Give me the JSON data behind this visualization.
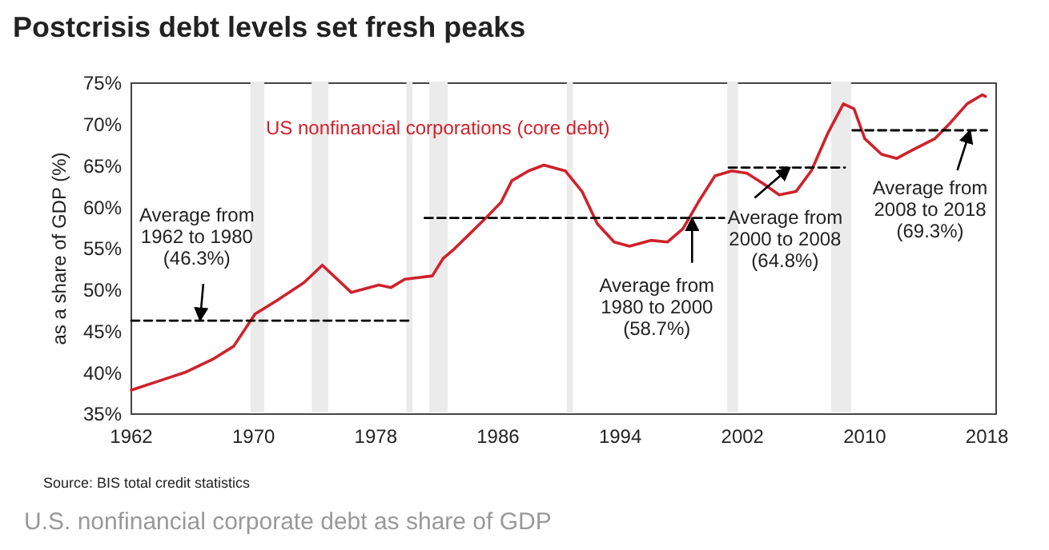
{
  "chart_data": {
    "type": "line",
    "title": "Postcrisis debt levels set fresh peaks",
    "ylabel": "as a share of GDP (%)",
    "xlim": [
      1962,
      2018.6
    ],
    "xticks": [
      1962,
      1970,
      1978,
      1986,
      1994,
      2002,
      2010,
      2018
    ],
    "ylim": [
      35,
      75
    ],
    "yticks": [
      {
        "value": 35,
        "label": "35%"
      },
      {
        "value": 40,
        "label": "40%"
      },
      {
        "value": 45,
        "label": "45%"
      },
      {
        "value": 50,
        "label": "50%"
      },
      {
        "value": 55,
        "label": "55%"
      },
      {
        "value": 60,
        "label": "60%"
      },
      {
        "value": 65,
        "label": "65%"
      },
      {
        "value": 70,
        "label": "70%"
      },
      {
        "value": 75,
        "label": "75%"
      }
    ],
    "series": [
      {
        "name": "US nonfinancial corporations (core debt)",
        "color": "#d0212b",
        "line_style": "solid",
        "x": [
          1962,
          1963.8,
          1965.6,
          1967.3,
          1968.7,
          1970.1,
          1971.5,
          1973.3,
          1974.5,
          1976.4,
          1978.2,
          1979,
          1979.9,
          1981.7,
          1982.4,
          1983.1,
          1984.1,
          1985.2,
          1986.2,
          1986.9,
          1988,
          1989,
          1990.4,
          1991.5,
          1992.5,
          1993.6,
          1994.6,
          1996,
          1997.1,
          1998.1,
          1999.2,
          2000.2,
          2001.3,
          2002.3,
          2003.4,
          2004.4,
          2005.5,
          2006.5,
          2007.6,
          2008.6,
          2009.3,
          2010,
          2011.1,
          2012.1,
          2013.2,
          2014.6,
          2015.6,
          2016.7,
          2017.7,
          2017.9
        ],
        "values": [
          37.9,
          39.0,
          40.1,
          41.6,
          43.2,
          47.1,
          48.7,
          50.9,
          53.0,
          49.7,
          50.6,
          50.3,
          51.3,
          51.7,
          53.8,
          54.9,
          56.7,
          58.7,
          60.6,
          63.2,
          64.4,
          65.1,
          64.4,
          61.9,
          58.0,
          55.8,
          55.3,
          56.0,
          55.8,
          57.4,
          60.9,
          63.8,
          64.4,
          64.1,
          62.8,
          61.5,
          61.9,
          64.4,
          69.0,
          72.5,
          71.9,
          68.3,
          66.4,
          65.9,
          67.0,
          68.3,
          70.2,
          72.5,
          73.6,
          73.4
        ]
      },
      {
        "color": "#000000",
        "line_style": "dashed",
        "x": [
          1962,
          1980.4
        ],
        "values": [
          46.3,
          46.3
        ]
      },
      {
        "color": "#000000",
        "line_style": "dashed",
        "x": [
          1981.2,
          2000.8
        ],
        "values": [
          58.7,
          58.7
        ]
      },
      {
        "color": "#000000",
        "line_style": "dashed",
        "x": [
          2001.1,
          2008.7
        ],
        "values": [
          64.8,
          64.8
        ]
      },
      {
        "color": "#000000",
        "line_style": "dashed",
        "x": [
          2009.2,
          2018
        ],
        "values": [
          69.3,
          69.3
        ]
      }
    ],
    "bands": [
      {
        "axis": "x",
        "from": 1969.8,
        "to": 1970.7,
        "color": "#ebebeb"
      },
      {
        "axis": "x",
        "from": 1973.8,
        "to": 1974.9,
        "color": "#ebebeb"
      },
      {
        "axis": "x",
        "from": 1980.0,
        "to": 1980.4,
        "color": "#ebebeb"
      },
      {
        "axis": "x",
        "from": 1981.5,
        "to": 1982.7,
        "color": "#ebebeb"
      },
      {
        "axis": "x",
        "from": 1990.5,
        "to": 1990.9,
        "color": "#ebebeb"
      },
      {
        "axis": "x",
        "from": 2001.0,
        "to": 2001.7,
        "color": "#ebebeb"
      },
      {
        "axis": "x",
        "from": 2007.8,
        "to": 2009.1,
        "color": "#ebebeb"
      }
    ],
    "annotations": [
      {
        "text": "Average from\n1962 to 1980\n(46.3%)",
        "x": 1966.5,
        "y": 46.3
      },
      {
        "text": "Average from\n1980 to 2000\n(58.7%)",
        "x": 1998.7,
        "y": 58.7
      },
      {
        "text": "Average from\n2000 to 2008\n(64.8%)",
        "x": 2005.1,
        "y": 64.8
      },
      {
        "text": "Average from\n2008 to 2018\n(69.3%)",
        "x": 2016.9,
        "y": 69.3
      },
      "Source: BIS total credit statistics",
      "U.S. nonfinancial corporate debt as share of GDP"
    ]
  }
}
